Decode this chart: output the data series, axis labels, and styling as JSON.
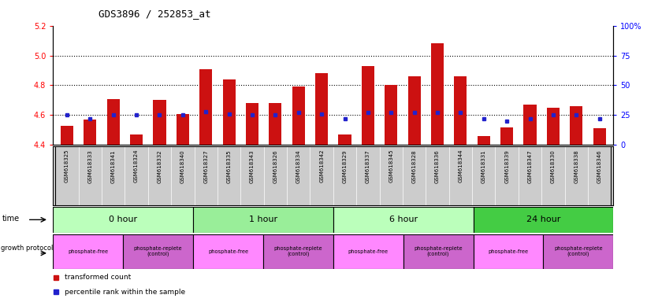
{
  "title": "GDS3896 / 252853_at",
  "samples": [
    "GSM618325",
    "GSM618333",
    "GSM618341",
    "GSM618324",
    "GSM618332",
    "GSM618340",
    "GSM618327",
    "GSM618335",
    "GSM618343",
    "GSM618326",
    "GSM618334",
    "GSM618342",
    "GSM618329",
    "GSM618337",
    "GSM618345",
    "GSM618328",
    "GSM618336",
    "GSM618344",
    "GSM618331",
    "GSM618339",
    "GSM618347",
    "GSM618330",
    "GSM618338",
    "GSM618346"
  ],
  "transformed_count": [
    4.53,
    4.57,
    4.71,
    4.47,
    4.7,
    4.61,
    4.91,
    4.84,
    4.68,
    4.68,
    4.79,
    4.88,
    4.47,
    4.93,
    4.8,
    4.86,
    5.08,
    4.86,
    4.46,
    4.52,
    4.67,
    4.65,
    4.66,
    4.51
  ],
  "percentile_rank": [
    25,
    22,
    25,
    25,
    25,
    25,
    28,
    26,
    25,
    25,
    27,
    26,
    22,
    27,
    27,
    27,
    27,
    27,
    22,
    20,
    22,
    25,
    25,
    22
  ],
  "time_groups": [
    {
      "label": "0 hour",
      "n": 6,
      "color": "#bbffbb"
    },
    {
      "label": "1 hour",
      "n": 6,
      "color": "#99ee99"
    },
    {
      "label": "6 hour",
      "n": 6,
      "color": "#bbffbb"
    },
    {
      "label": "24 hour",
      "n": 6,
      "color": "#44cc44"
    }
  ],
  "growth_groups": [
    {
      "label": "phosphate-free",
      "n": 3,
      "color": "#ff88ff"
    },
    {
      "label": "phosphate-replete\n(control)",
      "n": 3,
      "color": "#cc66cc"
    },
    {
      "label": "phosphate-free",
      "n": 3,
      "color": "#ff88ff"
    },
    {
      "label": "phosphate-replete\n(control)",
      "n": 3,
      "color": "#cc66cc"
    },
    {
      "label": "phosphate-free",
      "n": 3,
      "color": "#ff88ff"
    },
    {
      "label": "phosphate-replete\n(control)",
      "n": 3,
      "color": "#cc66cc"
    },
    {
      "label": "phosphate-free",
      "n": 3,
      "color": "#ff88ff"
    },
    {
      "label": "phosphate-replete\n(control)",
      "n": 3,
      "color": "#cc66cc"
    }
  ],
  "ylim": [
    4.4,
    5.2
  ],
  "yticks_left": [
    4.4,
    4.6,
    4.8,
    5.0,
    5.2
  ],
  "yticks_right_vals": [
    0,
    25,
    50,
    75,
    100
  ],
  "yticks_right_labels": [
    "0",
    "25",
    "50",
    "75",
    "100%"
  ],
  "dotted_lines": [
    4.6,
    4.8,
    5.0
  ],
  "bar_color": "#cc1111",
  "dot_color": "#2222cc",
  "bg_color": "#ffffff",
  "sample_bg_color": "#cccccc",
  "time_colors_0_1_2": [
    "#bbffbb",
    "#99ee99",
    "#bbffbb"
  ],
  "time_color_24": "#44cc44"
}
